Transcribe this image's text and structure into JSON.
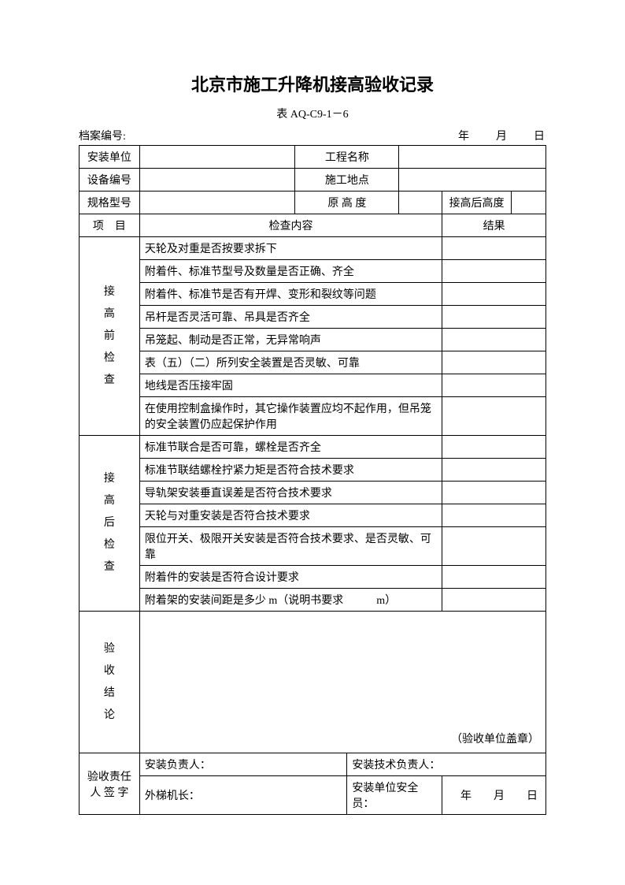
{
  "title": "北京市施工升降机接高验收记录",
  "subtitle": "表 AQ-C9-1－6",
  "fileNoLabel": "档案编号:",
  "dateLabel": "年　　月　　日",
  "headerRows": {
    "r1": {
      "c1": "安装单位",
      "c2": "",
      "c3": "工程名称",
      "c4": ""
    },
    "r2": {
      "c1": "设备编号",
      "c2": "",
      "c3": "施工地点",
      "c4": ""
    },
    "r3": {
      "c1": "规格型号",
      "c2": "",
      "c3": "原 高 度",
      "c4": "",
      "c5": "接高后高度",
      "c6": ""
    }
  },
  "columnHeaders": {
    "project": "项　目",
    "content": "检查内容",
    "result": "结果"
  },
  "preCheck": {
    "label": "接高前检查",
    "items": [
      "天轮及对重是否按要求拆下",
      "附着件、标准节型号及数量是否正确、齐全",
      "附着件、标准节是否有开焊、变形和裂纹等问题",
      "吊杆是否灵活可靠、吊具是否齐全",
      "吊笼起、制动是否正常，无异常响声",
      "表（五）（二）所列安全装置是否灵敏、可靠",
      "地线是否压接牢固",
      "在使用控制盒操作时，其它操作装置应均不起作用，但吊笼的安全装置仍应起保护作用"
    ]
  },
  "postCheck": {
    "label": "接高后检查",
    "items": [
      "标准节联合是否可靠，螺栓是否齐全",
      "标准节联结螺栓拧紧力矩是否符合技术要求",
      "导轨架安装垂直误差是否符合技术要求",
      "天轮与对重安装是否符合技术要求",
      "限位开关、极限开关安装是否符合技术要求、是否灵敏、可靠",
      "附着件的安装是否符合设计要求",
      "附着架的安装间距是多少 m（说明书要求　　　m）"
    ]
  },
  "conclusion": {
    "label": "验收结论",
    "stamp": "（验收单位盖章）"
  },
  "signature": {
    "label": "验收责任人 签 字",
    "r1c1": "安装负责人：",
    "r1c2": "安装技术负责人：",
    "r2c1": "外梯机长：",
    "r2c2": "安装单位安全员：",
    "r2c3": "年　　月　　日"
  }
}
